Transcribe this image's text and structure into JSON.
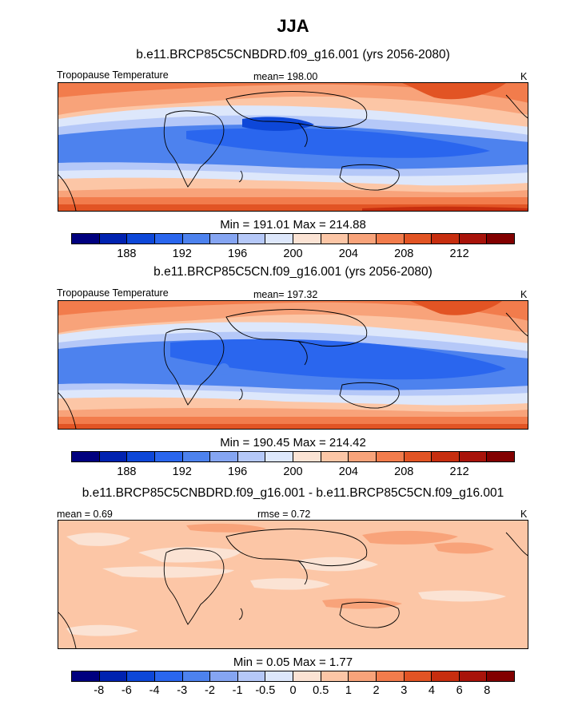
{
  "figure": {
    "title": "JJA"
  },
  "palette": {
    "tempColors": [
      "#00007f",
      "#0022b0",
      "#0d47d8",
      "#2a66ee",
      "#4d82ee",
      "#85a5f2",
      "#b5c8f8",
      "#dde7fb",
      "#fbe3d4",
      "#fcc6a6",
      "#f8a37a",
      "#f27c4c",
      "#e25424",
      "#c72e0f",
      "#a8130a",
      "#820000"
    ],
    "diffColors": [
      "#00007f",
      "#0022b0",
      "#0d47d8",
      "#2a66ee",
      "#4d82ee",
      "#85a5f2",
      "#b5c8f8",
      "#dde7fb",
      "#fbe3d4",
      "#fcc6a6",
      "#f8a37a",
      "#f27c4c",
      "#e25424",
      "#c72e0f",
      "#a8130a",
      "#820000"
    ]
  },
  "panels": [
    {
      "case_title": "b.e11.BRCP85C5CNBDRD.f09_g16.001 (yrs 2056-2080)",
      "left_label": "Tropopause Temperature",
      "center_label": "mean= 198.00",
      "right_label": "K",
      "stats": "Min = 191.01 Max = 214.88"
    },
    {
      "case_title": "b.e11.BRCP85C5CN.f09_g16.001 (yrs 2056-2080)",
      "left_label": "Tropopause Temperature",
      "center_label": "mean= 197.32",
      "right_label": "K",
      "stats": "Min = 190.45 Max = 214.42"
    },
    {
      "case_title": "b.e11.BRCP85C5CNBDRD.f09_g16.001 - b.e11.BRCP85C5CN.f09_g16.001",
      "left_label": "mean =   0.69",
      "center_label": "rmse =   0.72",
      "right_label": "K",
      "stats": "Min =   0.05 Max =   1.77"
    }
  ],
  "chart_data": [
    {
      "type": "heatmap",
      "subtype": "global-map-contour",
      "season": "JJA",
      "case": "b.e11.BRCP85C5CNBDRD.f09_g16.001",
      "years": "2056-2080",
      "variable": "Tropopause Temperature",
      "units": "K",
      "mean": 198.0,
      "min": 191.01,
      "max": 214.88,
      "colorbar_levels": [
        186,
        188,
        190,
        192,
        194,
        196,
        198,
        200,
        202,
        204,
        206,
        208,
        210,
        212,
        214
      ],
      "colorbar_labels": [
        "188",
        "192",
        "196",
        "200",
        "204",
        "208",
        "212"
      ],
      "label_levels": [
        188,
        192,
        196,
        200,
        204,
        208,
        212
      ]
    },
    {
      "type": "heatmap",
      "subtype": "global-map-contour",
      "season": "JJA",
      "case": "b.e11.BRCP85C5CN.f09_g16.001",
      "years": "2056-2080",
      "variable": "Tropopause Temperature",
      "units": "K",
      "mean": 197.32,
      "min": 190.45,
      "max": 214.42,
      "colorbar_levels": [
        186,
        188,
        190,
        192,
        194,
        196,
        198,
        200,
        202,
        204,
        206,
        208,
        210,
        212,
        214
      ],
      "colorbar_labels": [
        "188",
        "192",
        "196",
        "200",
        "204",
        "208",
        "212"
      ],
      "label_levels": [
        188,
        192,
        196,
        200,
        204,
        208,
        212
      ]
    },
    {
      "type": "heatmap",
      "subtype": "global-map-contour-difference",
      "season": "JJA",
      "difference": "b.e11.BRCP85C5CNBDRD.f09_g16.001 - b.e11.BRCP85C5CN.f09_g16.001",
      "units": "K",
      "mean": 0.69,
      "rmse": 0.72,
      "min": 0.05,
      "max": 1.77,
      "colorbar_levels": [
        -8,
        -6,
        -4,
        -3,
        -2,
        -1,
        -0.5,
        0,
        0.5,
        1,
        2,
        3,
        4,
        6,
        8
      ],
      "colorbar_labels": [
        "-8",
        "-6",
        "-4",
        "-3",
        "-2",
        "-1",
        "-0.5",
        "0",
        "0.5",
        "1",
        "2",
        "3",
        "4",
        "6",
        "8"
      ],
      "label_levels": [
        -8,
        -6,
        -4,
        -3,
        -2,
        -1,
        -0.5,
        0,
        0.5,
        1,
        2,
        3,
        4,
        6,
        8
      ]
    }
  ]
}
